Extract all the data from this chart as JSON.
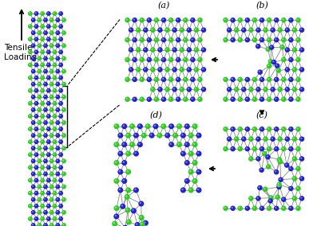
{
  "bg_color": "#ffffff",
  "label_a": "(a)",
  "label_b": "(b)",
  "label_c": "(c)",
  "label_d": "(d)",
  "tensile_text": "Tensile\nLoading",
  "arrow_color": "#000000",
  "green_color": "#2ecc20",
  "blue_color": "#2222cc",
  "green_dark": "#1a8a10",
  "blue_dark": "#111188",
  "label_fontsize": 8,
  "tensile_fontsize": 7.5,
  "fig_width": 3.92,
  "fig_height": 2.84,
  "dpi": 100
}
